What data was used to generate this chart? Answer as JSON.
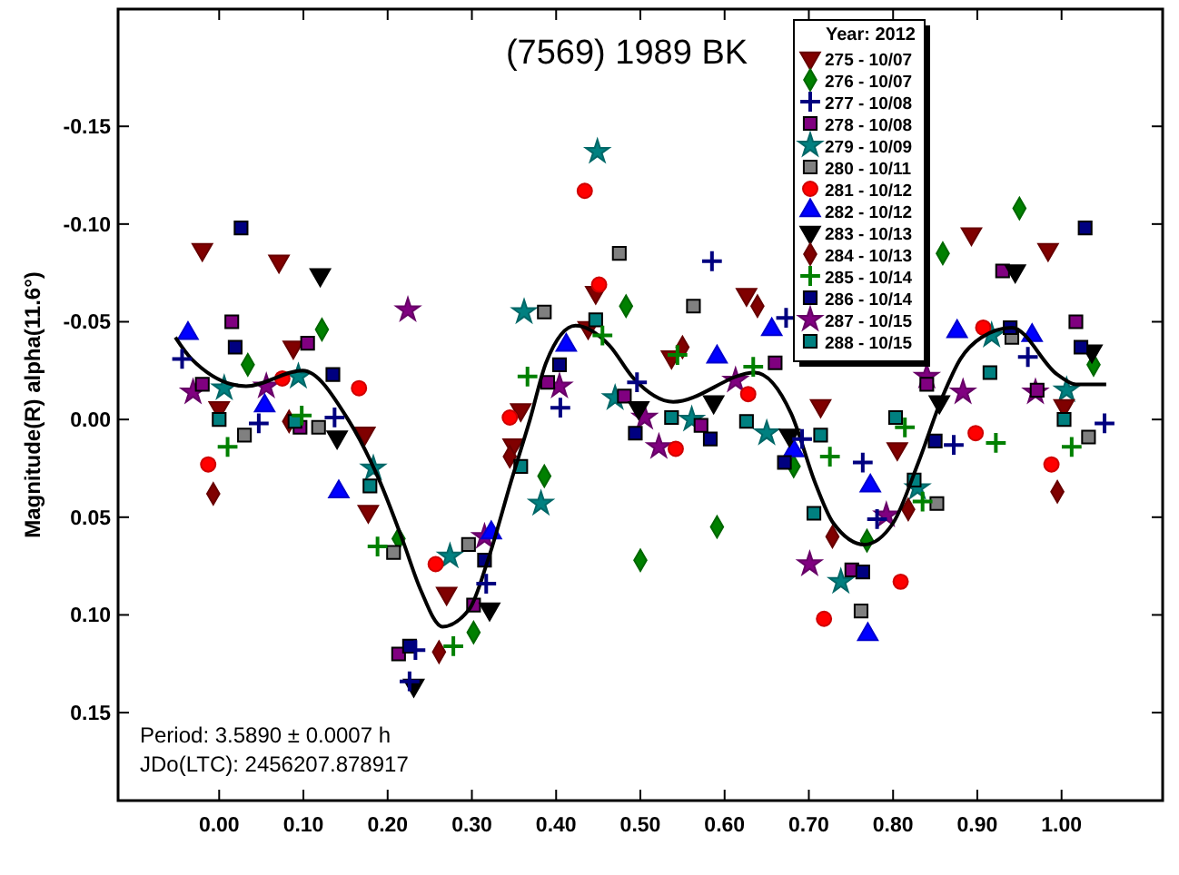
{
  "chart_data": {
    "type": "scatter",
    "title": "(7569) 1989 BK",
    "ylabel": "Magnitude(R) alpha(11.6°)",
    "legend_title": "Year: 2012",
    "legend": "top right",
    "grid": false,
    "xlim": [
      -0.12,
      1.12
    ],
    "ylim": [
      0.195,
      -0.21
    ],
    "xticks": [
      {
        "value": 0,
        "label": "0.00"
      },
      {
        "value": 0.1,
        "label": "0.10"
      },
      {
        "value": 0.2,
        "label": "0.20"
      },
      {
        "value": 0.3,
        "label": "0.30"
      },
      {
        "value": 0.4,
        "label": "0.40"
      },
      {
        "value": 0.5,
        "label": "0.50"
      },
      {
        "value": 0.6,
        "label": "0.60"
      },
      {
        "value": 0.7,
        "label": "0.70"
      },
      {
        "value": 0.8,
        "label": "0.80"
      },
      {
        "value": 0.9,
        "label": "0.90"
      },
      {
        "value": 1,
        "label": "1.00"
      }
    ],
    "yticks": [
      {
        "value": -0.15,
        "label": "-0.15"
      },
      {
        "value": -0.1,
        "label": "-0.10"
      },
      {
        "value": -0.05,
        "label": "-0.05"
      },
      {
        "value": 0,
        "label": "0.00"
      },
      {
        "value": 0.05,
        "label": "0.05"
      },
      {
        "value": 0.1,
        "label": "0.10"
      },
      {
        "value": 0.15,
        "label": "0.15"
      }
    ],
    "annotations": [
      "Period: 3.5890 ± 0.0007 h",
      "JDo(LTC): 2456207.878917"
    ],
    "series": [
      {
        "name": "275 - 10/07",
        "color": "#800000",
        "marker": "triangle-down",
        "x": [
          -0.02,
          0.071,
          0.088,
          0,
          0.173,
          0.177,
          0.27,
          0.358,
          0.349,
          0.447,
          0.438,
          0.537,
          0.626,
          0.714,
          0.805,
          0.893,
          0.984,
          1.003
        ],
        "values": [
          -0.087,
          -0.081,
          -0.037,
          -0.006,
          0.007,
          0.047,
          0.089,
          -0.005,
          0.013,
          -0.065,
          -0.047,
          -0.032,
          -0.064,
          -0.007,
          0.015,
          -0.095,
          -0.087,
          -0.007
        ]
      },
      {
        "name": "276 - 10/07",
        "color": "#008000",
        "marker": "diamond",
        "x": [
          0.034,
          0.122,
          0.213,
          0.302,
          0.386,
          0.483,
          0.5,
          0.591,
          0.682,
          0.769,
          0.859,
          0.95,
          1.038
        ],
        "values": [
          -0.028,
          -0.046,
          0.061,
          0.109,
          0.029,
          -0.058,
          0.072,
          0.055,
          0.024,
          0.062,
          -0.085,
          -0.108,
          -0.028
        ]
      },
      {
        "name": "277 - 10/08",
        "color": "#000080",
        "marker": "cross",
        "x": [
          -0.044,
          0.047,
          0.137,
          0.233,
          0.226,
          0.317,
          0.405,
          0.496,
          0.585,
          0.673,
          0.692,
          0.764,
          0.781,
          0.872,
          0.96,
          1.051
        ],
        "values": [
          -0.031,
          0.002,
          -0.001,
          0.118,
          0.134,
          0.084,
          -0.006,
          -0.019,
          -0.081,
          -0.052,
          0.01,
          0.022,
          0.051,
          0.013,
          -0.032,
          0.002
        ]
      },
      {
        "name": "278 - 10/08",
        "color": "#800080",
        "marker": "square",
        "x": [
          -0.02,
          0.015,
          0.096,
          0.105,
          0.213,
          0.302,
          0.39,
          0.481,
          0.572,
          0.66,
          0.751,
          0.84,
          0.93,
          0.971,
          1.017
        ],
        "values": [
          -0.018,
          -0.05,
          0.004,
          -0.039,
          0.12,
          0.095,
          -0.019,
          -0.012,
          0.003,
          -0.029,
          0.077,
          -0.018,
          -0.076,
          -0.015,
          -0.05
        ]
      },
      {
        "name": "279 - 10/09",
        "color": "#008080",
        "marker": "star",
        "x": [
          0.006,
          0.094,
          0.183,
          0.274,
          0.382,
          0.362,
          0.449,
          0.47,
          0.561,
          0.65,
          0.738,
          0.829,
          0.917,
          1.006
        ],
        "values": [
          -0.016,
          -0.022,
          0.025,
          0.07,
          0.043,
          -0.055,
          -0.137,
          -0.011,
          0,
          0.007,
          0.083,
          0.035,
          -0.043,
          -0.015
        ]
      },
      {
        "name": "280 - 10/11",
        "color": "#808080",
        "marker": "square",
        "x": [
          0.03,
          0.118,
          0.207,
          0.296,
          0.386,
          0.475,
          0.563,
          0.762,
          0.852,
          0.941,
          1.032
        ],
        "values": [
          0.008,
          0.004,
          0.068,
          0.064,
          -0.055,
          -0.085,
          -0.058,
          0.098,
          0.043,
          -0.042,
          0.009
        ]
      },
      {
        "name": "281 - 10/12",
        "color": "#ff0000",
        "marker": "circle",
        "x": [
          -0.013,
          0.075,
          0.166,
          0.257,
          0.345,
          0.434,
          0.451,
          0.542,
          0.628,
          0.718,
          0.809,
          0.898,
          0.907,
          0.988
        ],
        "values": [
          0.023,
          -0.021,
          -0.016,
          0.074,
          -0.001,
          -0.117,
          -0.069,
          0.015,
          -0.013,
          0.102,
          0.083,
          0.007,
          -0.047,
          0.023
        ]
      },
      {
        "name": "282 - 10/12",
        "color": "#0000ff",
        "marker": "triangle",
        "x": [
          -0.037,
          0.054,
          0.142,
          0.323,
          0.412,
          0.591,
          0.656,
          0.682,
          0.773,
          0.77,
          0.876,
          0.965
        ],
        "values": [
          -0.044,
          -0.007,
          0.037,
          0.058,
          -0.038,
          -0.032,
          -0.046,
          0.016,
          0.034,
          0.11,
          -0.045,
          -0.043
        ]
      },
      {
        "name": "283 - 10/13",
        "color": "#000000",
        "marker": "triangle-down",
        "x": [
          0.12,
          0.14,
          0.231,
          0.321,
          0.498,
          0.587,
          0.677,
          0.855,
          0.945,
          1.036
        ],
        "values": [
          -0.074,
          0.009,
          0.136,
          0.097,
          -0.006,
          -0.009,
          0.008,
          -0.009,
          -0.076,
          -0.035
        ]
      },
      {
        "name": "284 - 10/13",
        "color": "#800000",
        "marker": "diamond",
        "x": [
          -0.007,
          0.083,
          0.261,
          0.345,
          0.55,
          0.639,
          0.728,
          0.818,
          0.995
        ],
        "values": [
          0.038,
          0.001,
          0.119,
          0.019,
          -0.037,
          -0.058,
          0.06,
          0.046,
          0.037
        ]
      },
      {
        "name": "285 - 10/14",
        "color": "#008000",
        "marker": "cross",
        "x": [
          0.01,
          0.098,
          0.188,
          0.278,
          0.366,
          0.455,
          0.544,
          0.634,
          0.725,
          0.814,
          0.835,
          0.922,
          1.012
        ],
        "values": [
          0.014,
          -0.002,
          0.065,
          0.116,
          -0.022,
          -0.043,
          -0.033,
          -0.027,
          0.019,
          0.004,
          0.042,
          0.012,
          0.014
        ]
      },
      {
        "name": "286 - 10/14",
        "color": "#000080",
        "marker": "square",
        "x": [
          0.026,
          0.019,
          0.135,
          0.226,
          0.315,
          0.404,
          0.494,
          0.583,
          0.671,
          0.764,
          0.85,
          0.939,
          1.028,
          1.023
        ],
        "values": [
          -0.098,
          -0.037,
          -0.023,
          0.116,
          0.072,
          -0.028,
          0.007,
          0.01,
          0.022,
          0.078,
          0.011,
          -0.047,
          -0.098,
          -0.037
        ]
      },
      {
        "name": "287 - 10/15",
        "color": "#800080",
        "marker": "star",
        "x": [
          -0.031,
          0.056,
          0.224,
          0.315,
          0.404,
          0.505,
          0.522,
          0.613,
          0.701,
          0.792,
          0.84,
          0.883,
          0.969
        ],
        "values": [
          -0.014,
          -0.017,
          -0.056,
          0.06,
          -0.017,
          -0.001,
          0.014,
          -0.02,
          0.074,
          0.049,
          -0.022,
          -0.014,
          -0.014
        ]
      },
      {
        "name": "288 - 10/15",
        "color": "#008080",
        "marker": "square",
        "x": [
          0,
          0.09,
          0.179,
          0.358,
          0.447,
          0.537,
          0.626,
          0.706,
          0.714,
          0.803,
          0.825,
          0.915,
          1.003
        ],
        "values": [
          0,
          0.001,
          0.034,
          0.024,
          -0.051,
          -0.001,
          0.001,
          0.048,
          0.008,
          -0.001,
          0.031,
          -0.024,
          0
        ]
      },
      {
        "type": "line",
        "color": "#000000",
        "marker": "none",
        "x": [
          -0.052,
          -0.033,
          0.032,
          0.099,
          0.153,
          0.19,
          0.218,
          0.239,
          0.265,
          0.297,
          0.319,
          0.347,
          0.369,
          0.388,
          0.423,
          0.463,
          0.492,
          0.539,
          0.636,
          0.679,
          0.708,
          0.729,
          0.766,
          0.8,
          0.83,
          0.859,
          0.88,
          0.905,
          0.941,
          0.995,
          1.017,
          1.053
        ],
        "values": [
          -0.042,
          -0.031,
          -0.017,
          -0.025,
          0,
          0.031,
          0.062,
          0.087,
          0.106,
          0.097,
          0.072,
          0.031,
          0,
          -0.029,
          -0.048,
          -0.038,
          -0.021,
          -0.009,
          -0.024,
          -0.003,
          0.033,
          0.053,
          0.064,
          0.053,
          0.022,
          -0.012,
          -0.031,
          -0.042,
          -0.047,
          -0.023,
          -0.018,
          -0.018
        ]
      }
    ]
  }
}
